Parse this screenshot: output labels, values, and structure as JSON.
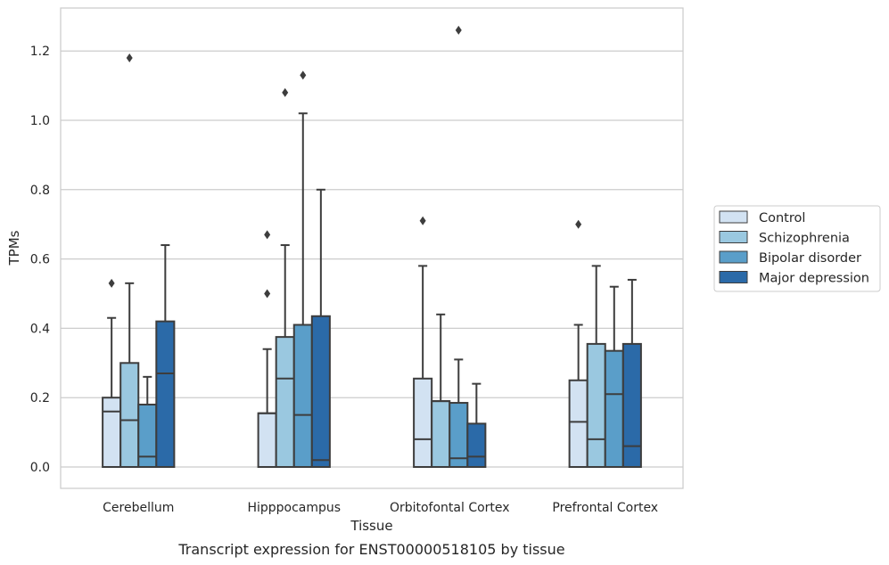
{
  "chart_data": {
    "type": "boxplot",
    "xlabel": "Tissue",
    "ylabel": "TPMs",
    "caption": "Transcript expression for ENST00000518105 by tissue",
    "ylim": [
      -0.06,
      1.33
    ],
    "yticks": [
      0.0,
      0.2,
      0.4,
      0.6,
      0.8,
      1.0,
      1.2
    ],
    "ytick_labels": [
      "0.0",
      "0.2",
      "0.4",
      "0.6",
      "0.8",
      "1.0",
      "1.2"
    ],
    "grid": "horizontal",
    "legend_position": "outside-right",
    "categories": [
      "Cerebellum",
      "Hipppocampus",
      "Orbitofontal Cortex",
      "Prefrontal Cortex"
    ],
    "series": [
      {
        "name": "Control",
        "color": "#d2e2f2",
        "boxes": [
          {
            "q1": 0.0,
            "median": 0.16,
            "q3": 0.2,
            "whisker_low": 0.0,
            "whisker_high": 0.43,
            "outliers": [
              0.53
            ]
          },
          {
            "q1": 0.0,
            "median": 0.155,
            "q3": 0.155,
            "whisker_low": 0.0,
            "whisker_high": 0.34,
            "outliers": [
              0.5,
              0.67
            ]
          },
          {
            "q1": 0.0,
            "median": 0.08,
            "q3": 0.255,
            "whisker_low": 0.0,
            "whisker_high": 0.58,
            "outliers": [
              0.71
            ]
          },
          {
            "q1": 0.0,
            "median": 0.13,
            "q3": 0.25,
            "whisker_low": 0.0,
            "whisker_high": 0.41,
            "outliers": [
              0.7
            ]
          }
        ]
      },
      {
        "name": "Schizophrenia",
        "color": "#9ac8e0",
        "boxes": [
          {
            "q1": 0.0,
            "median": 0.135,
            "q3": 0.3,
            "whisker_low": 0.0,
            "whisker_high": 0.53,
            "outliers": [
              1.18
            ]
          },
          {
            "q1": 0.0,
            "median": 0.255,
            "q3": 0.375,
            "whisker_low": 0.0,
            "whisker_high": 0.64,
            "outliers": [
              1.08
            ]
          },
          {
            "q1": 0.0,
            "median": 0.19,
            "q3": 0.19,
            "whisker_low": 0.0,
            "whisker_high": 0.44,
            "outliers": []
          },
          {
            "q1": 0.0,
            "median": 0.08,
            "q3": 0.355,
            "whisker_low": 0.0,
            "whisker_high": 0.58,
            "outliers": []
          }
        ]
      },
      {
        "name": "Bipolar disorder",
        "color": "#5a9ec9",
        "boxes": [
          {
            "q1": 0.0,
            "median": 0.03,
            "q3": 0.18,
            "whisker_low": 0.0,
            "whisker_high": 0.26,
            "outliers": []
          },
          {
            "q1": 0.0,
            "median": 0.15,
            "q3": 0.41,
            "whisker_low": 0.0,
            "whisker_high": 1.02,
            "outliers": [
              1.13
            ]
          },
          {
            "q1": 0.0,
            "median": 0.025,
            "q3": 0.185,
            "whisker_low": 0.0,
            "whisker_high": 0.31,
            "outliers": [
              1.26
            ]
          },
          {
            "q1": 0.0,
            "median": 0.21,
            "q3": 0.335,
            "whisker_low": 0.0,
            "whisker_high": 0.52,
            "outliers": []
          }
        ]
      },
      {
        "name": "Major depression",
        "color": "#2b6aa8",
        "boxes": [
          {
            "q1": 0.0,
            "median": 0.27,
            "q3": 0.42,
            "whisker_low": 0.0,
            "whisker_high": 0.64,
            "outliers": []
          },
          {
            "q1": 0.0,
            "median": 0.02,
            "q3": 0.435,
            "whisker_low": 0.0,
            "whisker_high": 0.8,
            "outliers": []
          },
          {
            "q1": 0.0,
            "median": 0.03,
            "q3": 0.125,
            "whisker_low": 0.0,
            "whisker_high": 0.24,
            "outliers": []
          },
          {
            "q1": 0.0,
            "median": 0.06,
            "q3": 0.355,
            "whisker_low": 0.0,
            "whisker_high": 0.54,
            "outliers": []
          }
        ]
      }
    ]
  }
}
